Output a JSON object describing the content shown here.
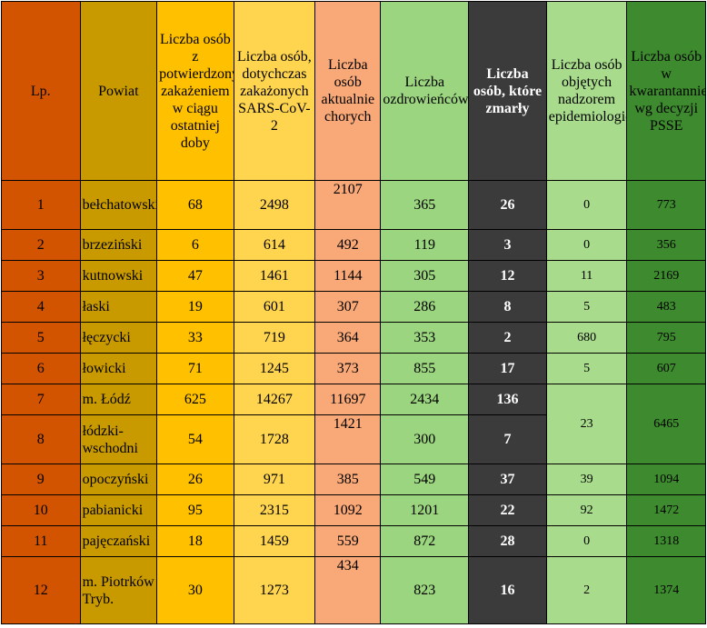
{
  "headers": [
    "Lp.",
    "Powiat",
    "Liczba osób z potwierdzonym zakażeniem w ciągu ostatniej doby",
    "Liczba osób, dotychczas zakażonych SARS-CoV-2",
    "Liczba osób aktualnie chorych",
    "Liczba ozdrowieńców",
    "Liczba osób, które zmarły",
    "Liczba osób objętych nadzorem epidemiologicznym",
    "Liczba osób w kwarantannie wg decyzji PSSE"
  ],
  "rows": [
    {
      "lp": "1",
      "powiat": "bełchatowski",
      "new": "68",
      "total": "2498",
      "sick": "2107",
      "recovered": "365",
      "died": "26",
      "supervision": "0",
      "quarantine": "773"
    },
    {
      "lp": "2",
      "powiat": "brzeziński",
      "new": "6",
      "total": "614",
      "sick": "492",
      "recovered": "119",
      "died": "3",
      "supervision": "0",
      "quarantine": "356"
    },
    {
      "lp": "3",
      "powiat": "kutnowski",
      "new": "47",
      "total": "1461",
      "sick": "1144",
      "recovered": "305",
      "died": "12",
      "supervision": "11",
      "quarantine": "2169"
    },
    {
      "lp": "4",
      "powiat": "łaski",
      "new": "19",
      "total": "601",
      "sick": "307",
      "recovered": "286",
      "died": "8",
      "supervision": "5",
      "quarantine": "483"
    },
    {
      "lp": "5",
      "powiat": "łęczycki",
      "new": "33",
      "total": "719",
      "sick": "364",
      "recovered": "353",
      "died": "2",
      "supervision": "680",
      "quarantine": "795"
    },
    {
      "lp": "6",
      "powiat": "łowicki",
      "new": "71",
      "total": "1245",
      "sick": "373",
      "recovered": "855",
      "died": "17",
      "supervision": "5",
      "quarantine": "607"
    },
    {
      "lp": "7",
      "powiat": "m. Łódź",
      "new": "625",
      "total": "14267",
      "sick": "11697",
      "recovered": "2434",
      "died": "136",
      "supervision": "23",
      "quarantine": "6465"
    },
    {
      "lp": "8",
      "powiat": "łódzki-wschodni",
      "new": "54",
      "total": "1728",
      "sick": "1421",
      "recovered": "300",
      "died": "7"
    },
    {
      "lp": "9",
      "powiat": "opoczyński",
      "new": "26",
      "total": "971",
      "sick": "385",
      "recovered": "549",
      "died": "37",
      "supervision": "39",
      "quarantine": "1094"
    },
    {
      "lp": "10",
      "powiat": "pabianicki",
      "new": "95",
      "total": "2315",
      "sick": "1092",
      "recovered": "1201",
      "died": "22",
      "supervision": "92",
      "quarantine": "1472"
    },
    {
      "lp": "11",
      "powiat": "pajęczański",
      "new": "18",
      "total": "1459",
      "sick": "559",
      "recovered": "872",
      "died": "28",
      "supervision": "0",
      "quarantine": "1318"
    },
    {
      "lp": "12",
      "powiat": "m. Piotrków Tryb.",
      "new": "30",
      "total": "1273",
      "sick": "434",
      "recovered": "823",
      "died": "16",
      "supervision": "2",
      "quarantine": "1374"
    }
  ]
}
